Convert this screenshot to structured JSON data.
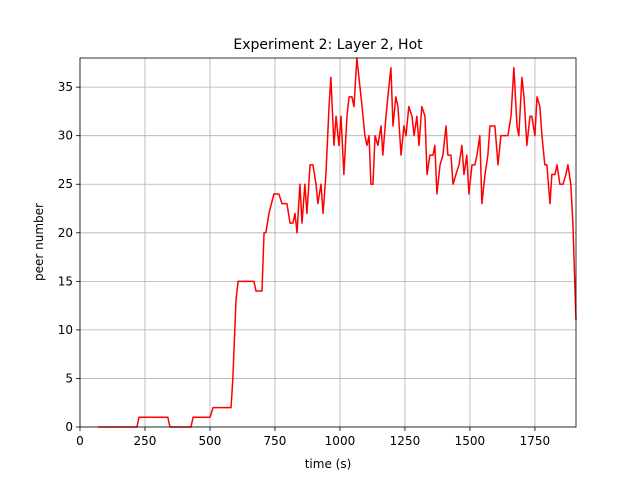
{
  "chart_data": {
    "type": "line",
    "title": "Experiment 2: Layer 2, Hot",
    "x_label": "time (s)",
    "y_label": "peer number",
    "x": [
      69,
      219,
      227,
      338,
      346,
      427,
      435,
      500,
      512,
      581,
      588,
      600,
      608,
      669,
      677,
      700,
      708,
      715,
      727,
      746,
      765,
      777,
      796,
      808,
      819,
      827,
      835,
      846,
      854,
      865,
      873,
      885,
      896,
      908,
      915,
      927,
      935,
      946,
      958,
      965,
      977,
      985,
      996,
      1004,
      1015,
      1027,
      1035,
      1046,
      1054,
      1065,
      1077,
      1085,
      1096,
      1104,
      1112,
      1119,
      1127,
      1135,
      1146,
      1158,
      1165,
      1177,
      1188,
      1196,
      1204,
      1215,
      1223,
      1235,
      1246,
      1254,
      1265,
      1277,
      1285,
      1296,
      1304,
      1315,
      1327,
      1335,
      1346,
      1358,
      1365,
      1373,
      1385,
      1396,
      1408,
      1415,
      1427,
      1435,
      1446,
      1458,
      1469,
      1477,
      1488,
      1496,
      1508,
      1519,
      1527,
      1538,
      1546,
      1558,
      1569,
      1577,
      1596,
      1608,
      1619,
      1646,
      1658,
      1669,
      1681,
      1688,
      1700,
      1708,
      1719,
      1731,
      1738,
      1750,
      1758,
      1769,
      1777,
      1788,
      1796,
      1808,
      1815,
      1827,
      1835,
      1846,
      1858,
      1869,
      1877,
      1888,
      1896,
      1908
    ],
    "series": [
      {
        "name": "peers",
        "color": "#ff0000",
        "values": [
          0,
          0,
          1,
          1,
          0,
          0,
          1,
          1,
          2,
          2,
          5,
          13,
          15,
          15,
          14,
          14,
          20,
          20,
          22,
          24,
          24,
          23,
          23,
          21,
          21,
          22,
          20,
          25,
          21,
          25,
          22,
          27,
          27,
          25,
          23,
          25,
          22,
          26,
          33,
          36,
          29,
          32,
          29,
          32,
          26,
          32,
          34,
          34,
          33,
          38,
          35,
          33,
          30,
          29,
          30,
          25,
          25,
          30,
          29,
          31,
          28,
          32,
          35,
          37,
          31,
          34,
          33,
          28,
          31,
          30,
          33,
          32,
          30,
          32,
          29,
          33,
          32,
          26,
          28,
          28,
          29,
          24,
          27,
          28,
          31,
          28,
          28,
          25,
          26,
          27,
          29,
          26,
          28,
          24,
          27,
          27,
          28,
          30,
          23,
          26,
          28,
          31,
          31,
          27,
          30,
          30,
          32,
          37,
          31,
          30,
          36,
          34,
          29,
          32,
          32,
          30,
          34,
          33,
          30,
          27,
          27,
          23,
          26,
          26,
          27,
          25,
          25,
          26,
          27,
          25,
          21,
          11
        ]
      }
    ],
    "xlim": [
      0,
      1908
    ],
    "ylim": [
      0,
      38
    ],
    "xticks": [
      0,
      250,
      500,
      750,
      1000,
      1250,
      1500,
      1750
    ],
    "yticks": [
      0,
      5,
      10,
      15,
      20,
      25,
      30,
      35
    ],
    "grid": true
  }
}
